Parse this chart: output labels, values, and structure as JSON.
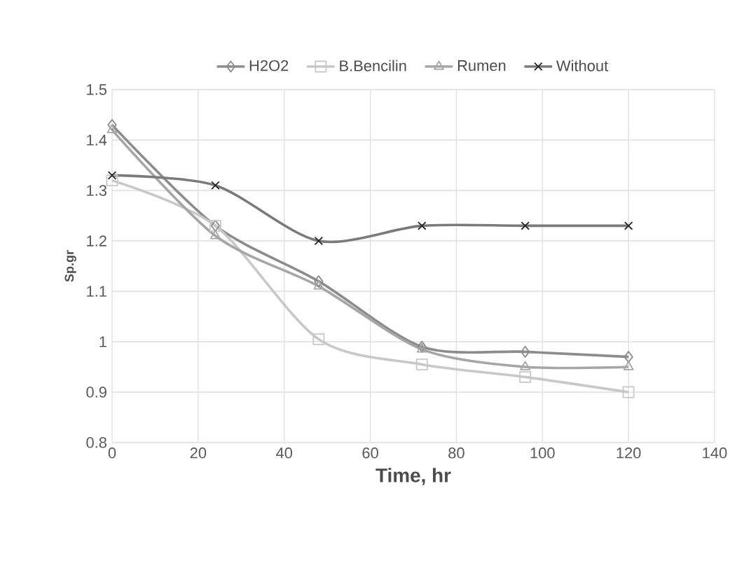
{
  "chart_data": {
    "type": "line",
    "xlabel": "Time, hr",
    "ylabel": "Sp.gr",
    "x": [
      0,
      24,
      48,
      72,
      96,
      120
    ],
    "series": [
      {
        "name": "H2O2",
        "color": "#8c8c8c",
        "marker": "diamond",
        "values": [
          1.43,
          1.23,
          1.12,
          0.99,
          0.98,
          0.97
        ]
      },
      {
        "name": "B.Bencilin",
        "color": "#c8c8c8",
        "marker": "square",
        "values": [
          1.32,
          1.23,
          1.005,
          0.955,
          0.93,
          0.9
        ]
      },
      {
        "name": "Rumen",
        "color": "#a6a6a6",
        "marker": "triangle",
        "values": [
          1.42,
          1.21,
          1.11,
          0.985,
          0.95,
          0.95
        ]
      },
      {
        "name": "Without",
        "color": "#7a7a7a",
        "marker": "cross",
        "values": [
          1.33,
          1.31,
          1.2,
          1.23,
          1.23,
          1.23
        ]
      }
    ],
    "xlim": [
      0,
      140
    ],
    "xticks": [
      0,
      20,
      40,
      60,
      80,
      100,
      120,
      140
    ],
    "ylim": [
      0.8,
      1.5
    ],
    "yticks": [
      0.8,
      0.9,
      1,
      1.1,
      1.2,
      1.3,
      1.4,
      1.5
    ],
    "grid": true,
    "legend": "top",
    "line_style": "solid"
  }
}
